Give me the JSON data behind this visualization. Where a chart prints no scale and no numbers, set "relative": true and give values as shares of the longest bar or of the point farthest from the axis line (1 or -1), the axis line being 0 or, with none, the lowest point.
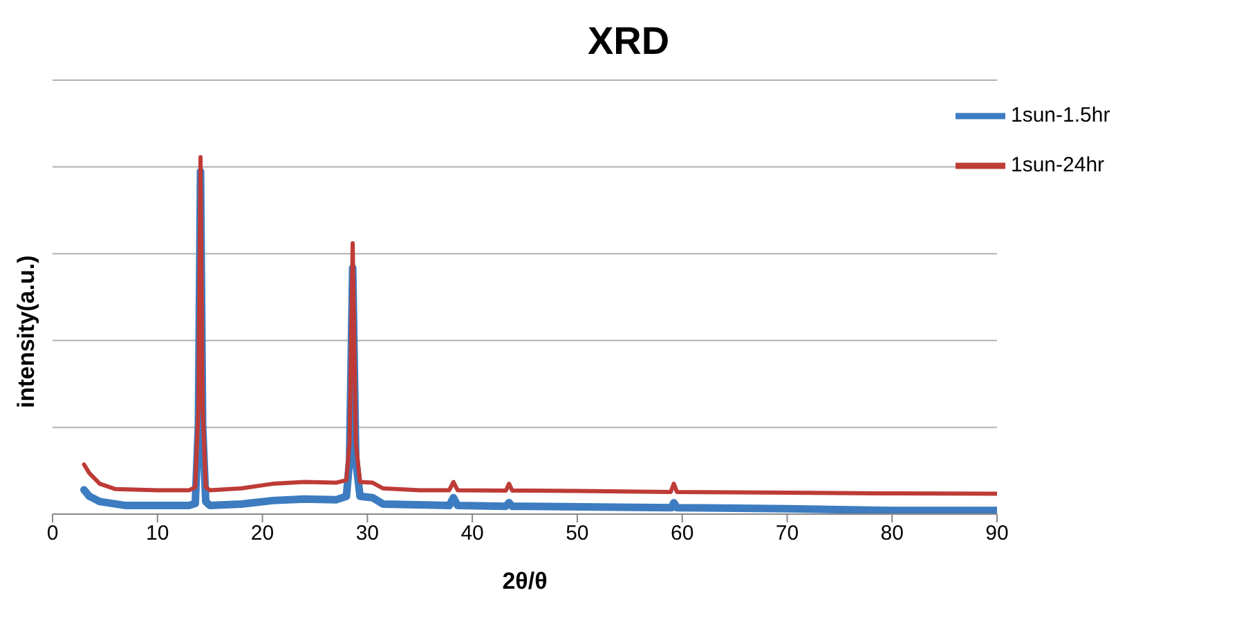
{
  "chart_data": {
    "type": "line",
    "title": "XRD",
    "xlabel": "2θ/θ",
    "ylabel": "intensity(a.u.)",
    "relative": true,
    "xlim": [
      0,
      90
    ],
    "xticks": [
      0,
      10,
      20,
      30,
      40,
      50,
      60,
      70,
      80,
      90
    ],
    "grid": "y",
    "legend": "top right",
    "marker": "none",
    "line_style": "solid",
    "series": [
      {
        "name": "1sun-1.5hr",
        "color": "#3d7cc0",
        "x": [
          3,
          3.5,
          4.5,
          7,
          13,
          13.6,
          13.9,
          14.1,
          14.3,
          14.6,
          15,
          18,
          21,
          24,
          27,
          28,
          28.3,
          28.6,
          28.9,
          29.3,
          30.5,
          31.5,
          37.8,
          38.2,
          38.6,
          43.2,
          43.5,
          43.8,
          59,
          59.2,
          59.5,
          70,
          80,
          90
        ],
        "values": [
          0.068,
          0.05,
          0.035,
          0.024,
          0.024,
          0.03,
          0.25,
          0.96,
          0.25,
          0.035,
          0.024,
          0.028,
          0.038,
          0.042,
          0.04,
          0.05,
          0.15,
          0.69,
          0.15,
          0.05,
          0.046,
          0.028,
          0.024,
          0.046,
          0.024,
          0.022,
          0.032,
          0.022,
          0.018,
          0.032,
          0.018,
          0.015,
          0.01,
          0.01
        ]
      },
      {
        "name": "1sun-24hr",
        "color": "#be3b37",
        "x": [
          3,
          3.5,
          4.5,
          6,
          10,
          13,
          13.6,
          13.9,
          14.1,
          14.3,
          14.6,
          15,
          18,
          21,
          24,
          27,
          28,
          28.3,
          28.6,
          28.9,
          29.3,
          30.5,
          31.5,
          35,
          37.8,
          38.2,
          38.6,
          43.2,
          43.5,
          43.8,
          50,
          58.9,
          59.2,
          59.5,
          70,
          80,
          90
        ],
        "values": [
          0.139,
          0.115,
          0.085,
          0.07,
          0.067,
          0.067,
          0.075,
          0.3,
          1.0,
          0.3,
          0.075,
          0.067,
          0.072,
          0.085,
          0.09,
          0.088,
          0.095,
          0.2,
          0.759,
          0.2,
          0.09,
          0.088,
          0.072,
          0.067,
          0.067,
          0.09,
          0.067,
          0.066,
          0.085,
          0.066,
          0.065,
          0.062,
          0.085,
          0.062,
          0.06,
          0.058,
          0.057
        ]
      }
    ]
  }
}
